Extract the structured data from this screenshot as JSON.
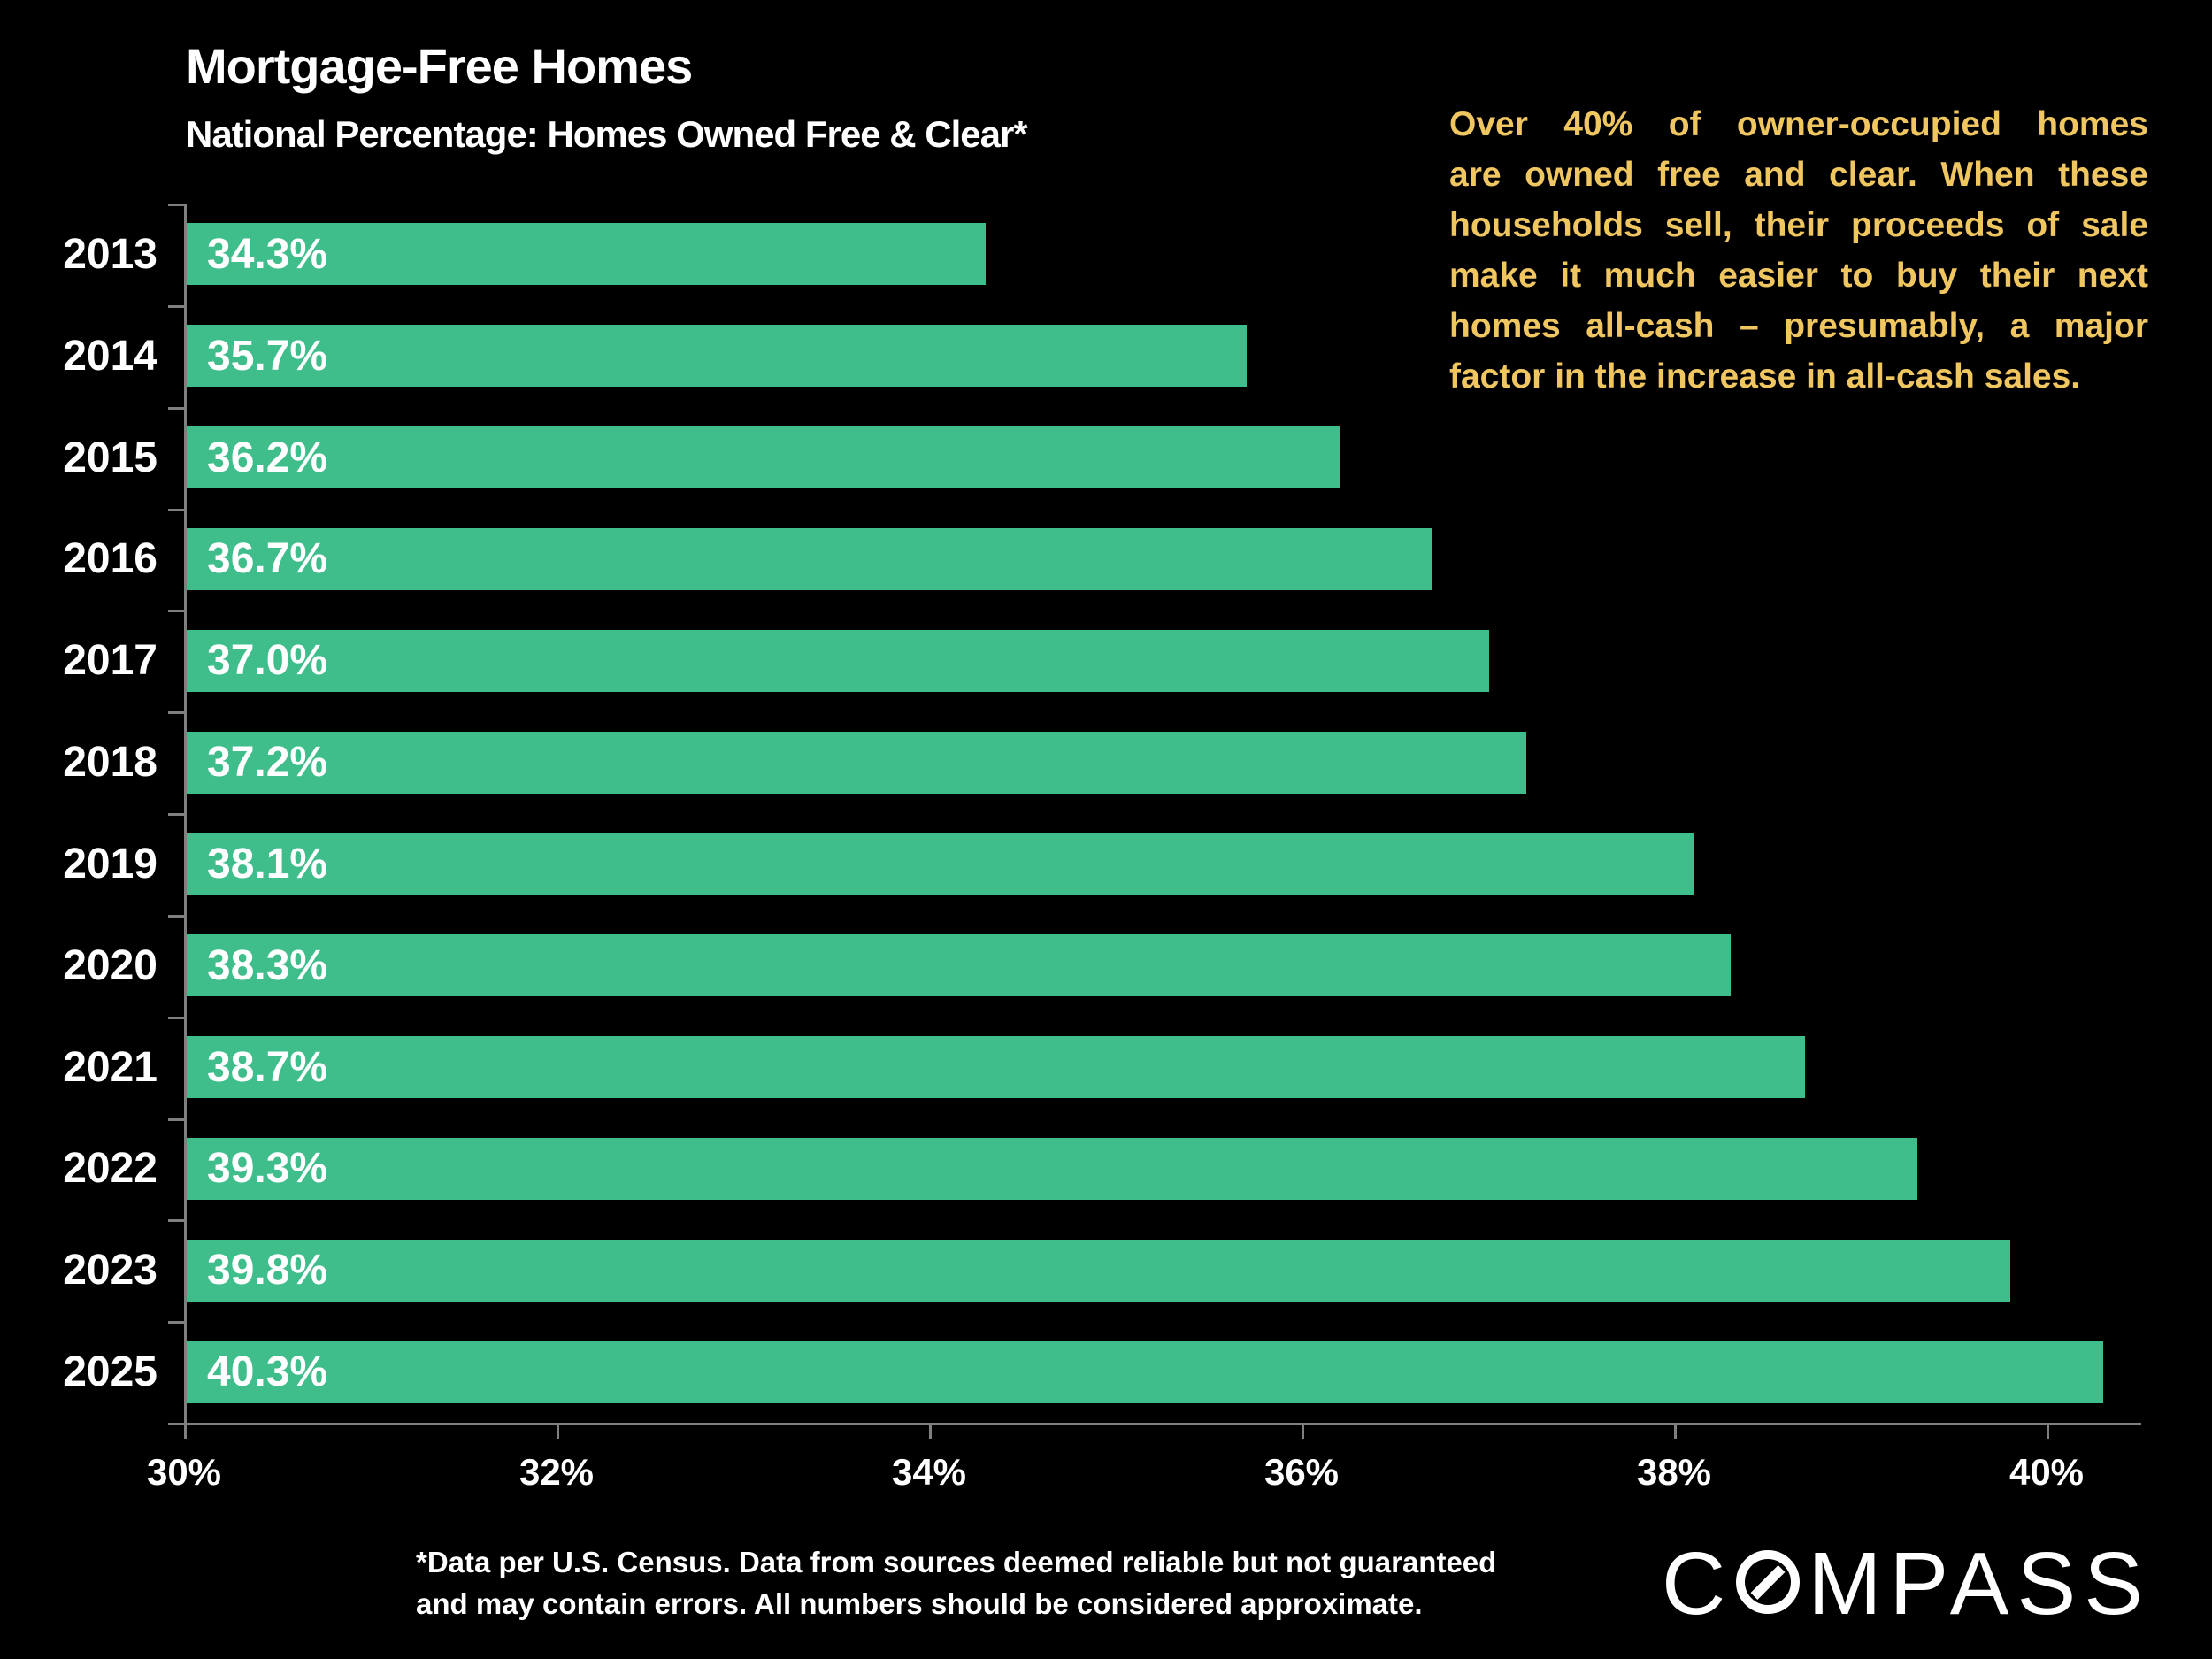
{
  "chart_data": {
    "type": "bar",
    "orientation": "horizontal",
    "title": "Mortgage-Free Homes",
    "subtitle": "National Percentage: Homes Owned Free & Clear*",
    "categories": [
      "2013",
      "2014",
      "2015",
      "2016",
      "2017",
      "2018",
      "2019",
      "2020",
      "2021",
      "2022",
      "2023",
      "2025"
    ],
    "values": [
      34.3,
      35.7,
      36.2,
      36.7,
      37.0,
      37.2,
      38.1,
      38.3,
      38.7,
      39.3,
      39.8,
      40.3
    ],
    "value_labels": [
      "34.3%",
      "35.7%",
      "36.2%",
      "36.7%",
      "37.0%",
      "37.2%",
      "38.1%",
      "38.3%",
      "38.7%",
      "39.3%",
      "39.8%",
      "40.3%"
    ],
    "xlabel": "",
    "ylabel": "",
    "xlim": [
      30,
      40.5
    ],
    "xtick_values": [
      30,
      32,
      34,
      36,
      38,
      40
    ],
    "xtick_labels": [
      "30%",
      "32%",
      "34%",
      "36%",
      "38%",
      "40%"
    ],
    "grid": false,
    "legend": null,
    "bar_color": "#3FBE8C",
    "bar_label_color": "#FFFFFF",
    "axis_color": "#7F7F7F",
    "background_color": "#000000"
  },
  "annotation": {
    "color": "#F0C660",
    "lines": [
      "Over 40% of owner-occupied homes",
      "are owned free and clear. When these",
      "households sell, their proceeds of sale",
      "make it much easier to buy their next",
      "homes all-cash – presumably, a major",
      "factor in the increase in all-cash sales."
    ]
  },
  "footer": {
    "disclaimer_lines": [
      "*Data per U.S. Census. Data from sources deemed reliable but not guaranteed",
      "and may contain errors. All numbers should be considered approximate."
    ]
  },
  "logo": {
    "text": "COMPASS"
  }
}
